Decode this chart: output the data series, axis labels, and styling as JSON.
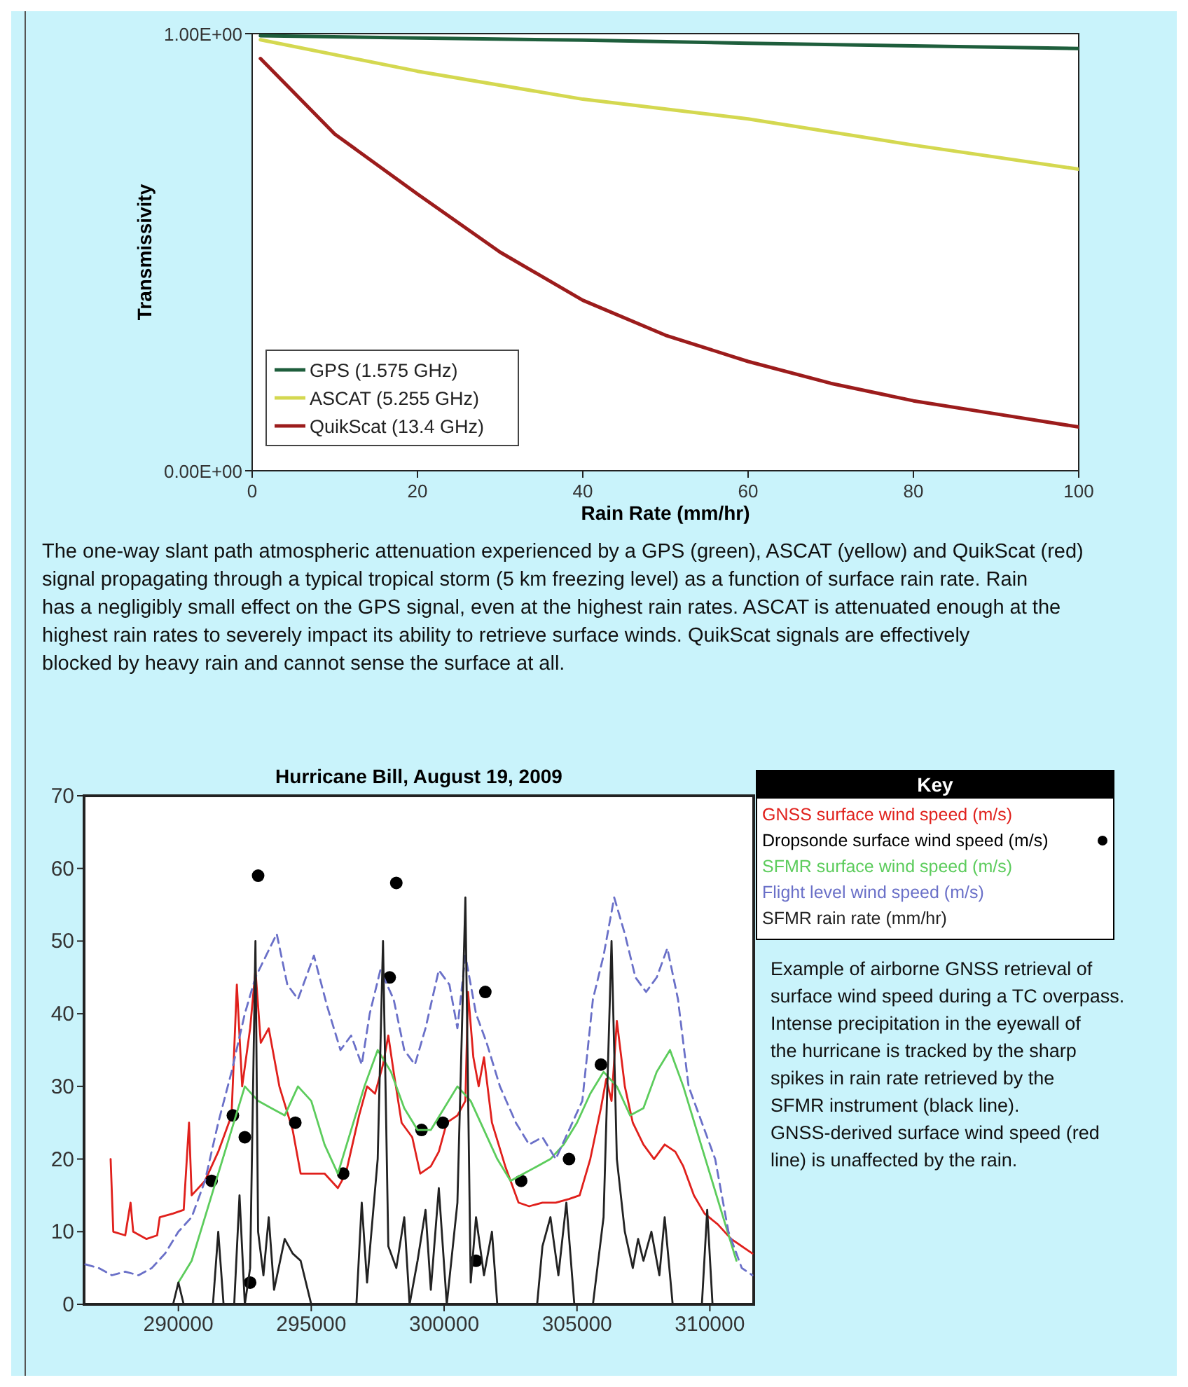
{
  "chart_data": [
    {
      "type": "line",
      "xlabel": "Rain Rate (mm/hr)",
      "ylabel": "Transmissivity",
      "xlim": [
        0,
        100
      ],
      "ylim": [
        0,
        1
      ],
      "xticks": [
        0,
        20,
        40,
        60,
        80,
        100
      ],
      "yticks": [
        {
          "value": 0,
          "label": "0.00E+00"
        },
        {
          "value": 1,
          "label": "1.00E+00"
        }
      ],
      "legend": "bottom left",
      "series": [
        {
          "name": "GPS (1.575 GHz)",
          "color": "#1e5e3c",
          "x": [
            1,
            20,
            40,
            60,
            80,
            100
          ],
          "values": [
            0.995,
            0.99,
            0.985,
            0.978,
            0.972,
            0.966
          ]
        },
        {
          "name": "ASCAT (5.255 GHz)",
          "color": "#d4d850",
          "x": [
            1,
            20,
            40,
            60,
            80,
            100
          ],
          "values": [
            0.986,
            0.914,
            0.85,
            0.805,
            0.745,
            0.69
          ]
        },
        {
          "name": "QuikScat (13.4 GHz)",
          "color": "#9c1c1c",
          "x": [
            1,
            10,
            20,
            30,
            40,
            50,
            60,
            70,
            80,
            90,
            100
          ],
          "values": [
            0.943,
            0.77,
            0.633,
            0.5,
            0.39,
            0.31,
            0.25,
            0.2,
            0.16,
            0.13,
            0.1
          ]
        }
      ],
      "annotations": [
        "The one-way slant path atmospheric attenuation experienced by a GPS (green), ASCAT (yellow) and QuikScat (red) signal propagating through a typical tropical storm (5 km freezing level) as a function of surface rain rate. Rain has a negligibly small effect on the GPS signal, even at the highest rain rates. ASCAT is attenuated enough at the highest rain rates to severely impact its ability to retrieve surface winds. QuikScat signals are effectively blocked by heavy rain and cannot sense the surface at all."
      ]
    },
    {
      "type": "line",
      "title": "Hurricane Bill, August 19, 2009",
      "xlim": [
        286450,
        311650
      ],
      "ylim": [
        0,
        70
      ],
      "xticks": [
        290000,
        295000,
        300000,
        305000,
        310000
      ],
      "yticks": [
        0,
        10,
        20,
        30,
        40,
        50,
        60,
        70
      ],
      "legend": "top right",
      "legend_title": "Key",
      "series": [
        {
          "name": "GNSS surface wind speed (m/s)",
          "color": "#e0201c",
          "x": [
            287450,
            287550,
            288000,
            288200,
            288300,
            288800,
            289200,
            289300,
            289800,
            290200,
            290400,
            290500,
            291000,
            291500,
            292000,
            292200,
            292400,
            292700,
            292900,
            293100,
            293400,
            293800,
            294300,
            294600,
            295000,
            295500,
            296000,
            296300,
            296800,
            297100,
            297400,
            297700,
            297900,
            298100,
            298400,
            298800,
            299100,
            299500,
            299800,
            300100,
            300500,
            300800,
            300900,
            301100,
            301300,
            301500,
            301800,
            302300,
            302800,
            303200,
            303700,
            304200,
            304700,
            305100,
            305500,
            305900,
            306100,
            306300,
            306500,
            306800,
            307100,
            307500,
            307900,
            308300,
            308700,
            309000,
            309400,
            309800,
            310300,
            310800,
            311200,
            311600
          ],
          "values": [
            20,
            10,
            9.5,
            14,
            10,
            9,
            9.5,
            12,
            12.5,
            13,
            25,
            15,
            17,
            21,
            26,
            44,
            30,
            38,
            46,
            36,
            38,
            30,
            24,
            18,
            18,
            18,
            16,
            18,
            26,
            30,
            29,
            33,
            37,
            32,
            25,
            23,
            18,
            19,
            21,
            25,
            26,
            28,
            43,
            34,
            30,
            34,
            25,
            19,
            14,
            13.5,
            14,
            14,
            14.5,
            15,
            20,
            27,
            31,
            28,
            39,
            30,
            25,
            22,
            20,
            22,
            21,
            19,
            15,
            12.5,
            11,
            9,
            8,
            7
          ]
        },
        {
          "name": "Dropsonde surface wind speed (m/s)",
          "type": "scatter",
          "marker": "circle",
          "color": "#000000",
          "x": [
            291250,
            292050,
            292500,
            293000,
            292700,
            294400,
            296200,
            297950,
            298200,
            299150,
            299950,
            301200,
            301550,
            302900,
            304700,
            305900
          ],
          "values": [
            17,
            26,
            23,
            59,
            3,
            25,
            18,
            45,
            58,
            24,
            25,
            6,
            43,
            17,
            20,
            33
          ]
        },
        {
          "name": "SFMR surface wind speed (m/s)",
          "color": "#5ccc5c",
          "x": [
            290000,
            290500,
            291000,
            291500,
            292000,
            292500,
            293000,
            293500,
            294000,
            294500,
            295000,
            295500,
            296000,
            296500,
            297000,
            297500,
            298000,
            298500,
            299000,
            299500,
            300000,
            300500,
            301000,
            301500,
            302000,
            302500,
            303000,
            303500,
            304000,
            304500,
            305000,
            305500,
            306000,
            306500,
            307000,
            307500,
            308000,
            308500,
            309000,
            309500,
            310000,
            310500,
            311000
          ],
          "values": [
            3,
            6,
            12,
            18,
            24,
            30,
            28,
            27,
            26,
            30,
            28,
            22,
            18,
            24,
            30,
            35,
            32,
            27,
            24,
            24,
            27,
            30,
            28,
            24,
            20,
            17,
            18,
            19,
            20,
            22,
            25,
            29,
            32,
            30,
            26,
            27,
            32,
            35,
            30,
            24,
            18,
            12,
            6
          ]
        },
        {
          "name": "Flight level wind speed (m/s)",
          "color": "#6a70c8",
          "line_style": "dashed",
          "x": [
            286500,
            287000,
            287500,
            288000,
            288500,
            289000,
            289500,
            290000,
            290500,
            291000,
            291500,
            292000,
            292500,
            292900,
            293300,
            293700,
            294100,
            294500,
            295100,
            295600,
            296100,
            296500,
            296900,
            297200,
            297600,
            298100,
            298500,
            298900,
            299300,
            299800,
            300200,
            300500,
            300800,
            301200,
            301600,
            302100,
            302700,
            303200,
            303700,
            304200,
            304700,
            305200,
            305600,
            306000,
            306400,
            306800,
            307200,
            307600,
            308000,
            308400,
            308800,
            309200,
            309700,
            310200,
            310700,
            311200,
            311600
          ],
          "values": [
            5.5,
            5,
            4,
            4.5,
            4,
            5,
            7,
            10,
            12,
            17,
            25,
            32,
            40,
            45,
            48,
            51,
            44,
            42,
            48,
            41,
            35,
            37,
            33,
            40,
            46,
            42,
            35,
            33,
            38,
            46,
            44,
            38,
            48,
            40,
            36,
            30,
            25,
            22,
            23,
            20,
            24,
            28,
            42,
            48,
            56,
            51,
            45,
            43,
            45,
            49,
            42,
            30,
            25,
            20,
            10,
            5,
            4
          ]
        },
        {
          "name": "SFMR rain rate (mm/hr)",
          "color": "#222222",
          "x": [
            289800,
            290000,
            290200,
            291300,
            291500,
            291700,
            292100,
            292300,
            292500,
            292700,
            292900,
            293000,
            293200,
            293400,
            293600,
            294000,
            294300,
            294600,
            294800,
            295000,
            296700,
            296900,
            297100,
            297500,
            297700,
            297900,
            298200,
            298500,
            298700,
            299000,
            299300,
            299500,
            299800,
            300100,
            300500,
            300800,
            301000,
            301200,
            301500,
            301800,
            302000,
            303500,
            303700,
            304000,
            304300,
            304600,
            304900,
            305600,
            306000,
            306300,
            306500,
            306800,
            307100,
            307300,
            307500,
            307800,
            308100,
            308300,
            308600,
            309700,
            309900,
            310100
          ],
          "values": [
            0,
            3,
            0,
            0,
            10,
            0,
            0,
            15,
            0,
            5,
            50,
            10,
            4,
            12,
            2,
            9,
            7,
            6,
            3,
            0,
            0,
            14,
            3,
            20,
            50,
            8,
            5,
            12,
            0,
            6,
            13,
            2,
            16,
            0,
            14,
            56,
            3,
            12,
            4,
            10,
            0,
            0,
            8,
            12,
            4,
            14,
            0,
            0,
            12,
            50,
            20,
            10,
            5,
            9,
            6,
            10,
            4,
            12,
            0,
            0,
            13,
            0
          ]
        }
      ],
      "annotations": [
        "Example of airborne GNSS retrieval of surface wind speed during a TC overpass. Intense precipitation in the eyewall of the hurricane is tracked by the sharp spikes in rain rate retrieved by the SFMR instrument (black line). GNSS-derived surface wind speed (red line) is unaffected by the rain."
      ]
    }
  ]
}
